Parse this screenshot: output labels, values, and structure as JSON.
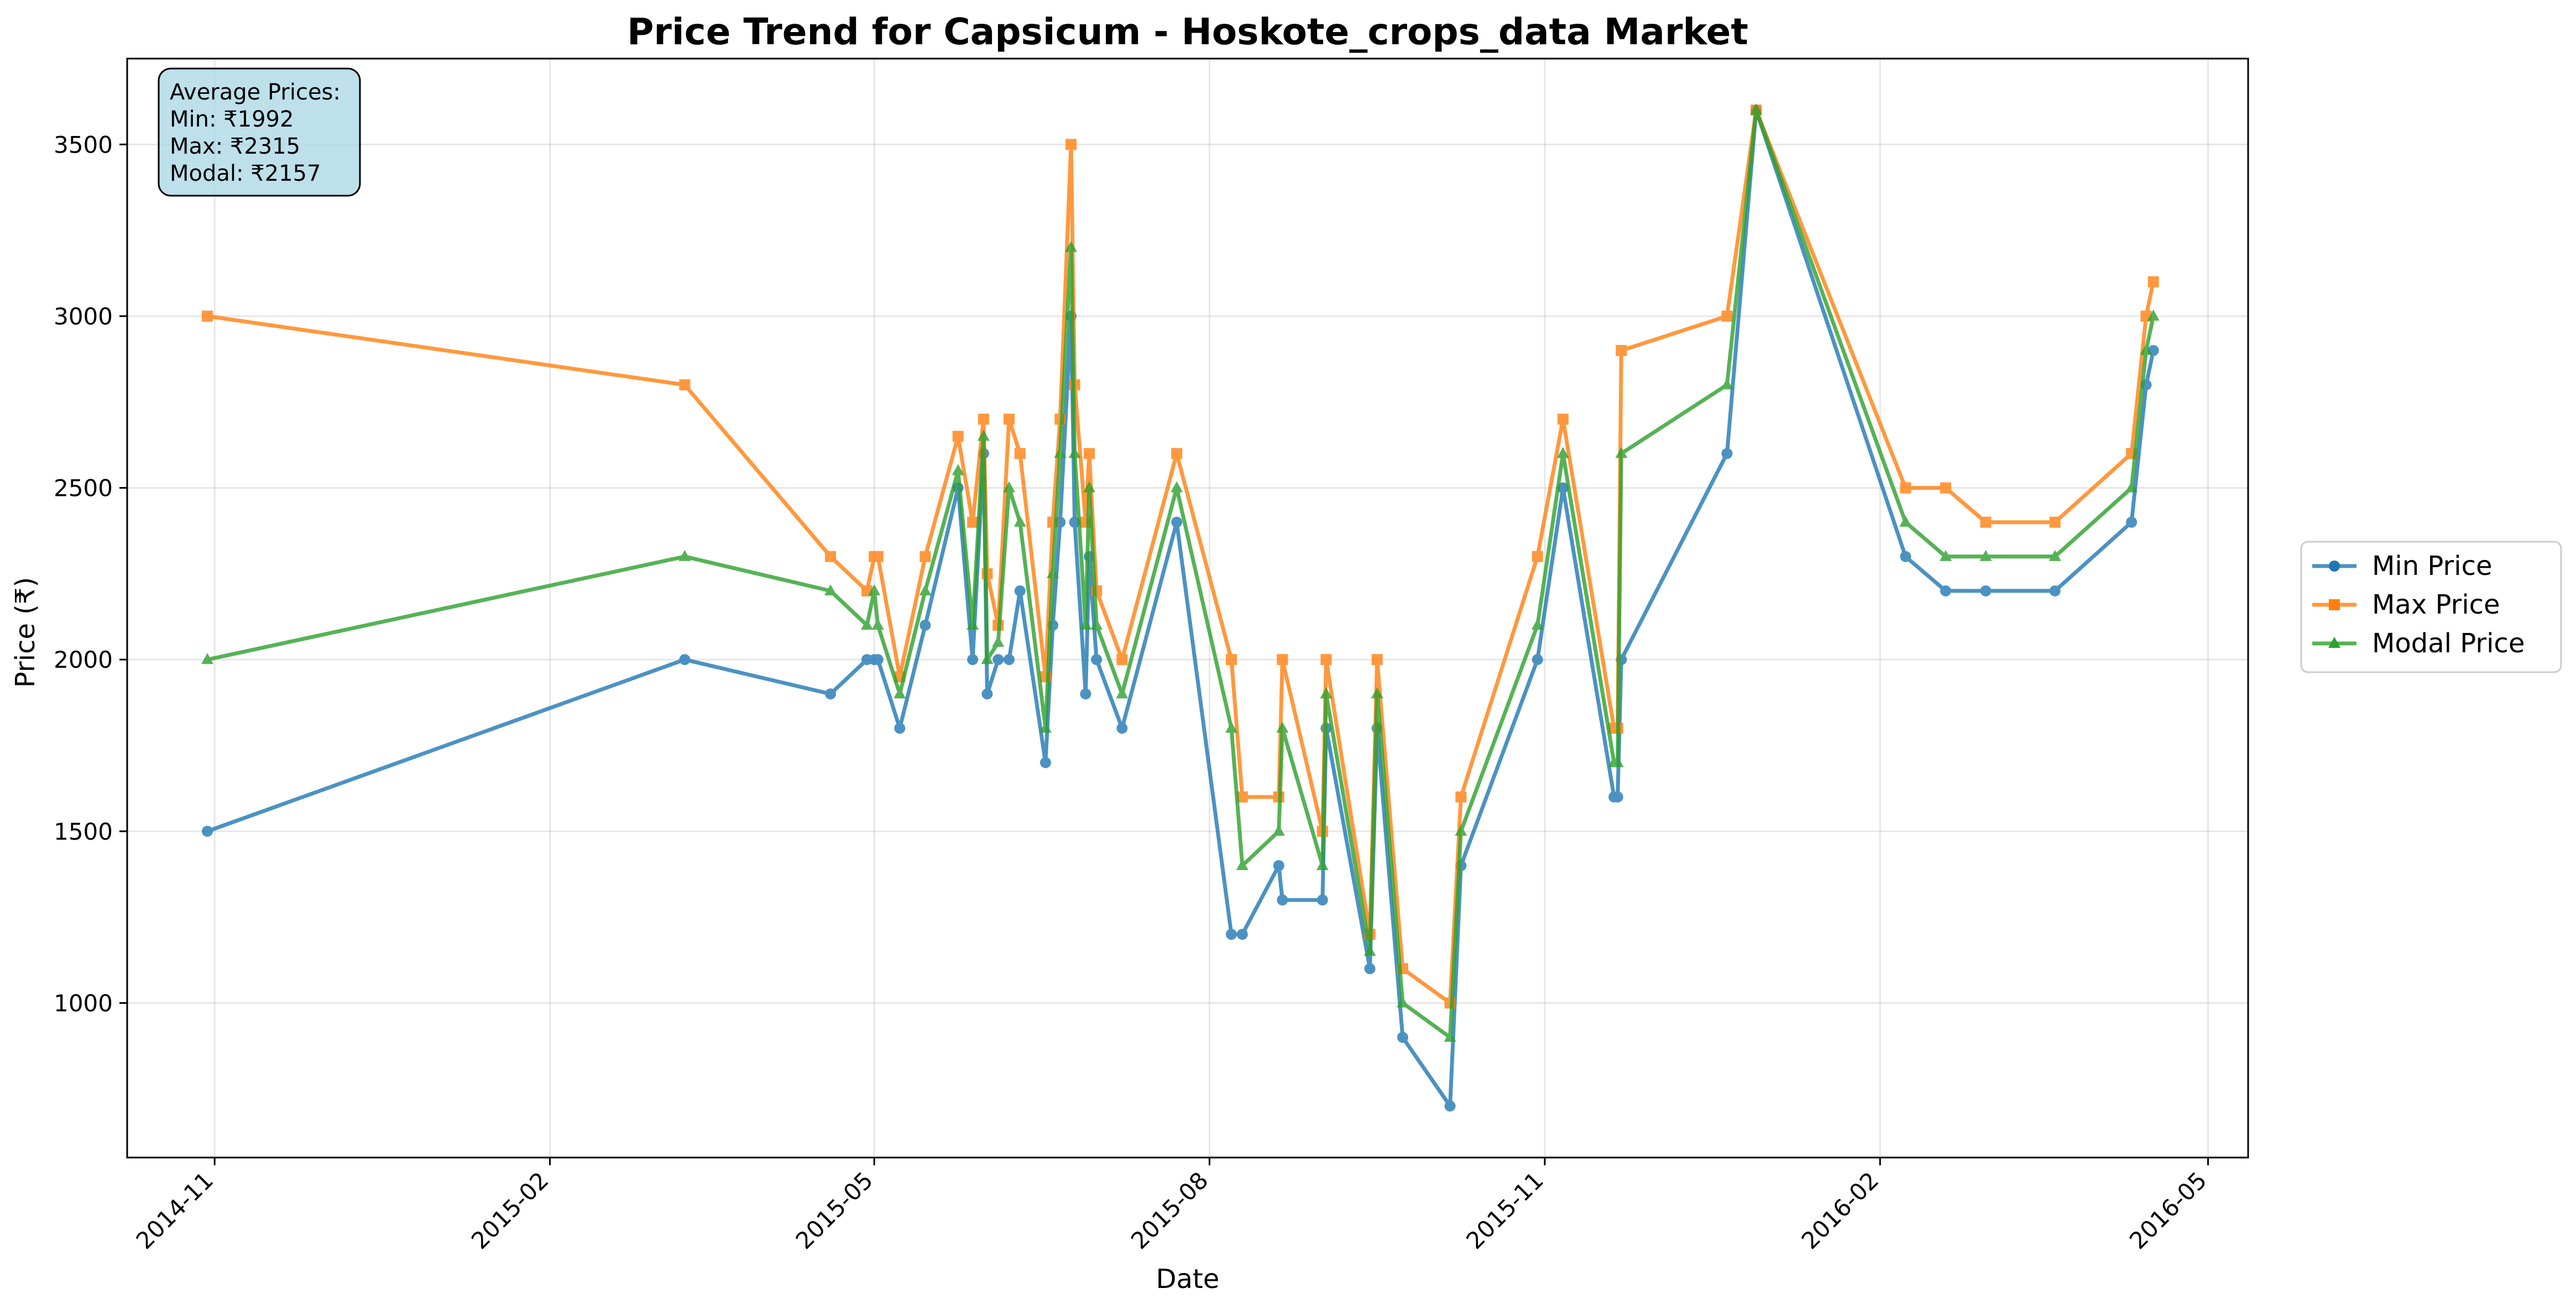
{
  "chart_data": {
    "type": "line",
    "title": "Price Trend for Capsicum - Hoskote_crops_data Market",
    "xlabel": "Date",
    "ylabel": "Price (₹)",
    "ylim": [
      550,
      3750
    ],
    "xlim": [
      "2014-10-08",
      "2016-05-12"
    ],
    "y_ticks": [
      1000,
      1500,
      2000,
      2500,
      3000,
      3500
    ],
    "x_ticks": [
      "2014-11-01",
      "2015-02-01",
      "2015-05-01",
      "2015-08-01",
      "2015-11-01",
      "2016-02-01",
      "2016-05-01"
    ],
    "x_tick_labels": [
      "2014-11",
      "2015-02",
      "2015-05",
      "2015-08",
      "2015-11",
      "2016-02",
      "2016-05"
    ],
    "grid": true,
    "legend_position": "right",
    "colors": {
      "min": "#1f77b4",
      "max": "#ff7f0e",
      "modal": "#2ca02c"
    },
    "annotation": {
      "lines": [
        "Average Prices:",
        "Min: ₹1992",
        "Max: ₹2315",
        "Modal: ₹2157"
      ],
      "position": "top-left",
      "background": "#add8e6"
    },
    "x": [
      "2014-10-30",
      "2015-03-10",
      "2015-04-19",
      "2015-04-29",
      "2015-05-01",
      "2015-05-02",
      "2015-05-08",
      "2015-05-15",
      "2015-05-24",
      "2015-05-28",
      "2015-05-31",
      "2015-06-01",
      "2015-06-04",
      "2015-06-07",
      "2015-06-10",
      "2015-06-17",
      "2015-06-19",
      "2015-06-21",
      "2015-06-24",
      "2015-06-25",
      "2015-06-28",
      "2015-06-29",
      "2015-07-01",
      "2015-07-08",
      "2015-07-23",
      "2015-08-07",
      "2015-08-10",
      "2015-08-20",
      "2015-08-21",
      "2015-09-01",
      "2015-09-02",
      "2015-09-14",
      "2015-09-16",
      "2015-09-23",
      "2015-10-06",
      "2015-10-09",
      "2015-10-30",
      "2015-11-06",
      "2015-11-20",
      "2015-11-21",
      "2015-11-22",
      "2015-12-21",
      "2015-12-29",
      "2016-02-08",
      "2016-02-19",
      "2016-03-01",
      "2016-03-20",
      "2016-04-10",
      "2016-04-14",
      "2016-04-16"
    ],
    "series": [
      {
        "name": "Min Price",
        "values": [
          1500,
          2000,
          1900,
          2000,
          2000,
          2000,
          1800,
          2100,
          2500,
          2000,
          2600,
          1900,
          2000,
          2000,
          2200,
          1700,
          2100,
          2400,
          3000,
          2400,
          1900,
          2300,
          2000,
          1800,
          2400,
          1200,
          1200,
          1400,
          1300,
          1300,
          1800,
          1100,
          1800,
          900,
          700,
          1400,
          2000,
          2500,
          1600,
          1600,
          2000,
          2600,
          3600,
          2300,
          2200,
          2200,
          2200,
          2400,
          2800,
          2900
        ]
      },
      {
        "name": "Max Price",
        "values": [
          3000,
          2800,
          2300,
          2200,
          2300,
          2300,
          1950,
          2300,
          2650,
          2400,
          2700,
          2250,
          2100,
          2700,
          2600,
          1950,
          2400,
          2700,
          3500,
          2800,
          2400,
          2600,
          2200,
          2000,
          2600,
          2000,
          1600,
          1600,
          2000,
          1500,
          2000,
          1200,
          2000,
          1100,
          1000,
          1600,
          2300,
          2700,
          1800,
          1800,
          2900,
          3000,
          3600,
          2500,
          2500,
          2400,
          2400,
          2600,
          3000,
          3100
        ]
      },
      {
        "name": "Modal Price",
        "values": [
          2000,
          2300,
          2200,
          2100,
          2200,
          2100,
          1900,
          2200,
          2550,
          2100,
          2650,
          2000,
          2050,
          2500,
          2400,
          1800,
          2250,
          2600,
          3200,
          2600,
          2100,
          2500,
          2100,
          1900,
          2500,
          1800,
          1400,
          1500,
          1800,
          1400,
          1900,
          1150,
          1900,
          1000,
          900,
          1500,
          2100,
          2600,
          1700,
          1700,
          2600,
          2800,
          3600,
          2400,
          2300,
          2300,
          2300,
          2500,
          2900,
          3000
        ]
      }
    ]
  }
}
